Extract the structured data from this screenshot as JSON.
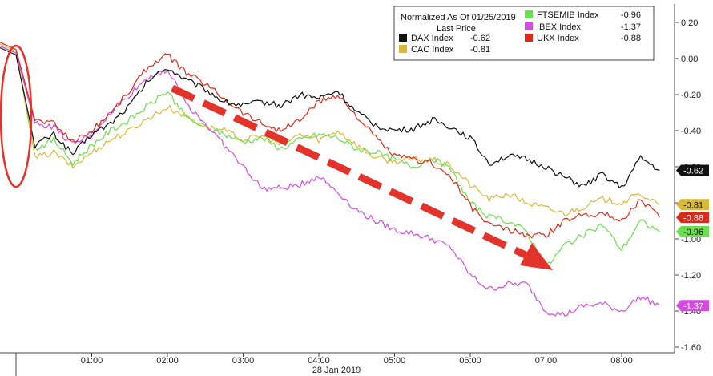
{
  "chart_data": {
    "type": "line",
    "xlabel": "28 Jan 2019",
    "x_ticks": [
      "01:00",
      "02:00",
      "03:00",
      "04:00",
      "05:00",
      "06:00",
      "07:00",
      "08:00"
    ],
    "x": [
      "00:00",
      "00:15",
      "00:30",
      "00:45",
      "01:00",
      "01:15",
      "01:30",
      "01:45",
      "02:00",
      "02:15",
      "02:30",
      "02:45",
      "03:00",
      "03:15",
      "03:30",
      "03:45",
      "04:00",
      "04:15",
      "04:30",
      "04:45",
      "05:00",
      "05:15",
      "05:30",
      "05:45",
      "06:00",
      "06:15",
      "06:30",
      "06:45",
      "07:00",
      "07:15",
      "07:30",
      "07:45",
      "08:00",
      "08:15",
      "08:30"
    ],
    "y_ticks": [
      "0.20",
      "0.00",
      "-0.20",
      "-0.40",
      "-0.60",
      "-0.80",
      "-1.00",
      "-1.20",
      "-1.40",
      "-1.60"
    ],
    "ylim": [
      -1.62,
      0.3
    ],
    "grid": false,
    "legend": {
      "title": "Normalized As Of 01/25/2019",
      "subtitle": "Last Price",
      "placement": "top-right"
    },
    "series": [
      {
        "name": "DAX Index",
        "last": "-0.62",
        "label": "-0.62",
        "color": "#111111",
        "values": [
          0.02,
          -0.48,
          -0.42,
          -0.53,
          -0.42,
          -0.36,
          -0.26,
          -0.12,
          -0.05,
          -0.12,
          -0.17,
          -0.24,
          -0.26,
          -0.24,
          -0.26,
          -0.2,
          -0.22,
          -0.18,
          -0.3,
          -0.37,
          -0.4,
          -0.39,
          -0.34,
          -0.38,
          -0.44,
          -0.58,
          -0.54,
          -0.56,
          -0.6,
          -0.66,
          -0.71,
          -0.64,
          -0.72,
          -0.55,
          -0.62
        ]
      },
      {
        "name": "CAC Index",
        "last": "-0.81",
        "label": "-0.81",
        "color": "#d9b938",
        "values": [
          0.04,
          -0.55,
          -0.52,
          -0.6,
          -0.52,
          -0.45,
          -0.4,
          -0.33,
          -0.27,
          -0.32,
          -0.38,
          -0.4,
          -0.45,
          -0.43,
          -0.48,
          -0.42,
          -0.45,
          -0.4,
          -0.48,
          -0.55,
          -0.57,
          -0.56,
          -0.56,
          -0.6,
          -0.7,
          -0.78,
          -0.75,
          -0.8,
          -0.83,
          -0.86,
          -0.82,
          -0.78,
          -0.8,
          -0.75,
          -0.81
        ]
      },
      {
        "name": "FTSEMIB Index",
        "last": "-0.96",
        "label": "-0.96",
        "color": "#6adf4f",
        "values": [
          0.03,
          -0.5,
          -0.45,
          -0.58,
          -0.48,
          -0.4,
          -0.34,
          -0.26,
          -0.18,
          -0.33,
          -0.38,
          -0.42,
          -0.46,
          -0.44,
          -0.5,
          -0.45,
          -0.42,
          -0.44,
          -0.5,
          -0.52,
          -0.56,
          -0.6,
          -0.55,
          -0.62,
          -0.8,
          -0.88,
          -0.9,
          -0.96,
          -1.16,
          -1.03,
          -0.98,
          -0.92,
          -1.06,
          -0.9,
          -0.96
        ]
      },
      {
        "name": "IBEX Index",
        "last": "-1.37",
        "label": "-1.37",
        "color": "#d44be0",
        "values": [
          0.03,
          -0.36,
          -0.38,
          -0.48,
          -0.42,
          -0.3,
          -0.2,
          -0.1,
          -0.06,
          -0.25,
          -0.36,
          -0.48,
          -0.6,
          -0.72,
          -0.72,
          -0.7,
          -0.65,
          -0.74,
          -0.84,
          -0.9,
          -0.95,
          -0.97,
          -1.0,
          -1.05,
          -1.2,
          -1.28,
          -1.25,
          -1.25,
          -1.4,
          -1.42,
          -1.37,
          -1.36,
          -1.4,
          -1.32,
          -1.37
        ]
      },
      {
        "name": "UKX Index",
        "last": "-0.88",
        "label": "-0.88",
        "color": "#d92a1c",
        "values": [
          0.05,
          -0.34,
          -0.36,
          -0.46,
          -0.4,
          -0.3,
          -0.18,
          -0.04,
          0.02,
          -0.08,
          -0.14,
          -0.22,
          -0.3,
          -0.36,
          -0.4,
          -0.34,
          -0.24,
          -0.2,
          -0.32,
          -0.44,
          -0.54,
          -0.56,
          -0.58,
          -0.66,
          -0.82,
          -0.92,
          -0.95,
          -0.98,
          -0.98,
          -0.9,
          -0.86,
          -0.86,
          -0.9,
          -0.78,
          -0.88
        ]
      }
    ]
  },
  "annotations": {
    "ellipse_color": "#e2342a",
    "arrow_color": "#e2342a"
  }
}
